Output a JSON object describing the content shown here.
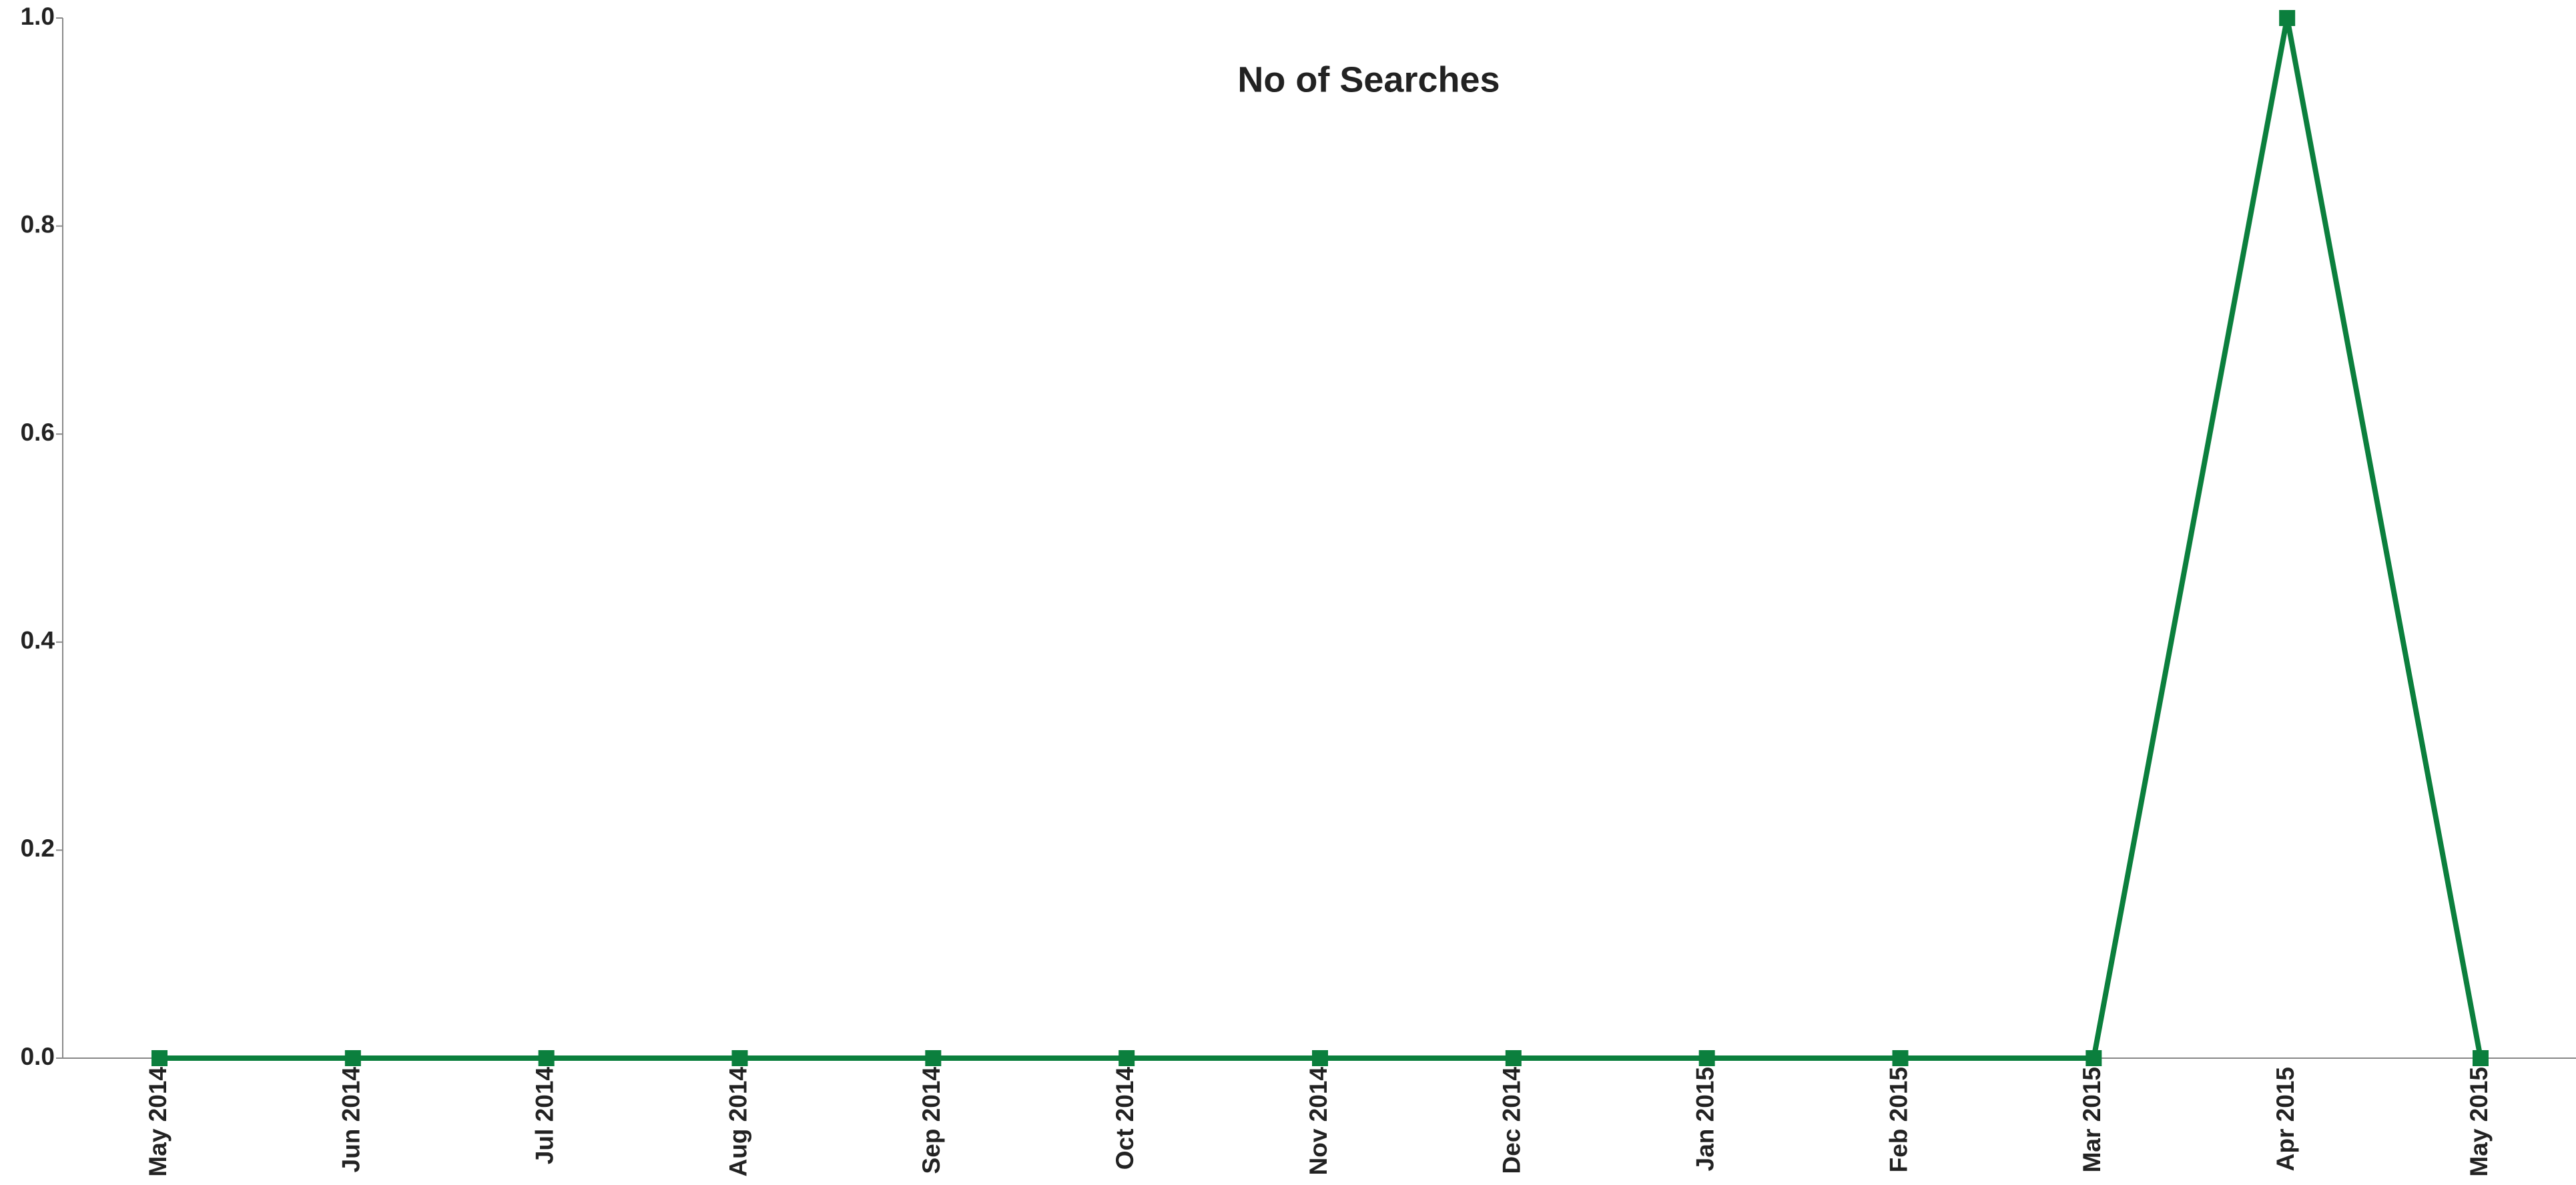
{
  "chart_data": {
    "type": "line",
    "title": "No of Searches",
    "categories": [
      "May 2014",
      "Jun 2014",
      "Jul 2014",
      "Aug 2014",
      "Sep 2014",
      "Oct 2014",
      "Nov 2014",
      "Dec 2014",
      "Jan 2015",
      "Feb 2015",
      "Mar 2015",
      "Apr 2015",
      "May 2015"
    ],
    "series": [
      {
        "name": "No of Searches",
        "color": "#0b7f3d",
        "values": [
          0,
          0,
          0,
          0,
          0,
          0,
          0,
          0,
          0,
          0,
          0,
          1,
          0
        ]
      }
    ],
    "ylim": [
      0,
      1
    ],
    "yticks": [
      {
        "value": 0,
        "label": "0.0"
      },
      {
        "value": 0.2,
        "label": "0.2"
      },
      {
        "value": 0.4,
        "label": "0.4"
      },
      {
        "value": 0.6,
        "label": "0.6"
      },
      {
        "value": 0.8,
        "label": "0.8"
      },
      {
        "value": 1,
        "label": "1.0"
      }
    ],
    "grid": false
  }
}
